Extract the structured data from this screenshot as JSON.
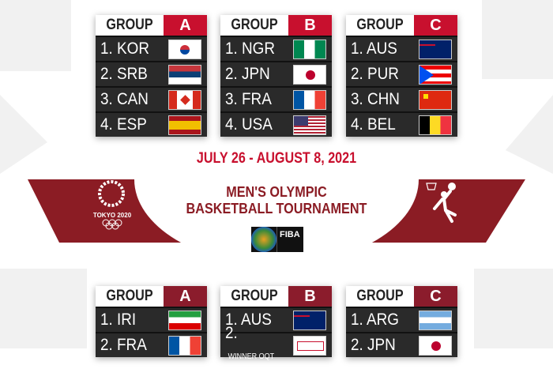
{
  "colors": {
    "accent_top": "#c8102e",
    "accent_bottom": "#8b1c2c",
    "banner": "#8b1c24"
  },
  "event": {
    "dates": "JULY 26 - AUGUST 8, 2021",
    "title_line1": "MEN'S OLYMPIC",
    "title_line2": "BASKETBALL TOURNAMENT",
    "games_logo": "TOKYO 2020",
    "fiba_logo": "FIBA",
    "sport_icon": "basketball-pictogram-icon"
  },
  "top_groups": [
    {
      "label": "GROUP",
      "letter": "A",
      "teams": [
        {
          "rank": "1. KOR",
          "flag": "kor"
        },
        {
          "rank": "2. SRB",
          "flag": "srb"
        },
        {
          "rank": "3. CAN",
          "flag": "can"
        },
        {
          "rank": "4. ESP",
          "flag": "esp"
        }
      ]
    },
    {
      "label": "GROUP",
      "letter": "B",
      "teams": [
        {
          "rank": "1. NGR",
          "flag": "ngr"
        },
        {
          "rank": "2. JPN",
          "flag": "jpn"
        },
        {
          "rank": "3. FRA",
          "flag": "fra"
        },
        {
          "rank": "4. USA",
          "flag": "usa"
        }
      ]
    },
    {
      "label": "GROUP",
      "letter": "C",
      "teams": [
        {
          "rank": "1. AUS",
          "flag": "aus"
        },
        {
          "rank": "2. PUR",
          "flag": "pur"
        },
        {
          "rank": "3. CHN",
          "flag": "chn"
        },
        {
          "rank": "4. BEL",
          "flag": "bel"
        }
      ]
    }
  ],
  "bottom_groups": [
    {
      "label": "GROUP",
      "letter": "A",
      "teams": [
        {
          "rank": "1. IRI",
          "flag": "iri"
        },
        {
          "rank": "2. FRA",
          "flag": "fra"
        }
      ]
    },
    {
      "label": "GROUP",
      "letter": "B",
      "teams": [
        {
          "rank": "1. AUS",
          "flag": "aus"
        },
        {
          "rank": "2.",
          "note": "WINNER OQT",
          "flag": "oqt"
        }
      ]
    },
    {
      "label": "GROUP",
      "letter": "C",
      "teams": [
        {
          "rank": "1. ARG",
          "flag": "arg"
        },
        {
          "rank": "2. JPN",
          "flag": "jpn"
        }
      ]
    }
  ]
}
